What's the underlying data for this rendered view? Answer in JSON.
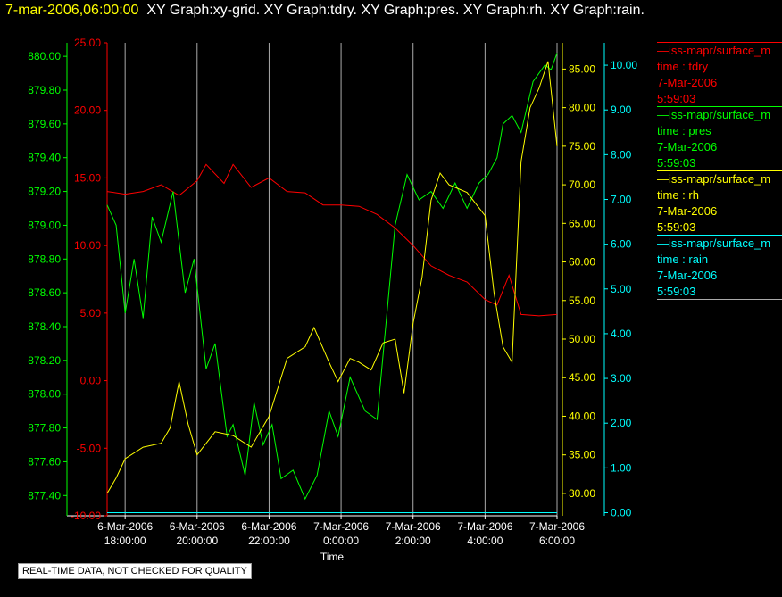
{
  "header": {
    "time": "7-mar-2006,06:00:00",
    "graphs": "XY Graph:xy-grid.  XY Graph:tdry.  XY Graph:pres.  XY Graph:rh.  XY Graph:rain."
  },
  "note": "REAL-TIME DATA, NOT CHECKED FOR QUALITY",
  "colors": {
    "tdry": "#ff0000",
    "pres": "#00ff00",
    "rh": "#ffff00",
    "rain": "#00ffff",
    "grid": "#aaaaaa",
    "text": "#ffffff"
  },
  "legend": [
    {
      "source": "—iss-mapr/surface_m",
      "label": "time : tdry",
      "date": "7-Mar-2006",
      "time": "5:59:03",
      "color": "#ff0000"
    },
    {
      "source": "—iss-mapr/surface_m",
      "label": "time : pres",
      "date": "7-Mar-2006",
      "time": "5:59:03",
      "color": "#00ff00"
    },
    {
      "source": "—iss-mapr/surface_m",
      "label": "time : rh",
      "date": "7-Mar-2006",
      "time": "5:59:03",
      "color": "#ffff00"
    },
    {
      "source": "—iss-mapr/surface_m",
      "label": "time : rain",
      "date": "7-Mar-2006",
      "time": "5:59:03",
      "color": "#00ffff"
    }
  ],
  "chart_data": {
    "type": "line",
    "xlabel": "Time",
    "x_range": [
      "2006-03-06 17:30",
      "2006-03-07 06:00"
    ],
    "x_ticks": [
      {
        "t": "2006-03-06 18:00",
        "date": "6-Mar-2006",
        "time": "18:00:00"
      },
      {
        "t": "2006-03-06 20:00",
        "date": "6-Mar-2006",
        "time": "20:00:00"
      },
      {
        "t": "2006-03-06 22:00",
        "date": "6-Mar-2006",
        "time": "22:00:00"
      },
      {
        "t": "2006-03-07 00:00",
        "date": "7-Mar-2006",
        "time": "0:00:00"
      },
      {
        "t": "2006-03-07 02:00",
        "date": "7-Mar-2006",
        "time": "2:00:00"
      },
      {
        "t": "2006-03-07 04:00",
        "date": "7-Mar-2006",
        "time": "4:00:00"
      },
      {
        "t": "2006-03-07 06:00",
        "date": "7-Mar-2006",
        "time": "6:00:00"
      }
    ],
    "grid": true,
    "axes": {
      "tdry": {
        "ylim": [
          -10,
          25
        ],
        "ticks": [
          "-10.00",
          "-5.00",
          "0.00",
          "5.00",
          "10.00",
          "15.00",
          "20.00",
          "25.00"
        ]
      },
      "pres": {
        "ylim": [
          877.28,
          880.08
        ],
        "ticks": [
          "877.40",
          "877.60",
          "877.80",
          "878.00",
          "878.20",
          "878.40",
          "878.60",
          "878.80",
          "879.00",
          "879.20",
          "879.40",
          "879.60",
          "879.80",
          "880.00"
        ]
      },
      "rh": {
        "ylim": [
          27.1,
          88.4
        ],
        "ticks": [
          "30.00",
          "35.00",
          "40.00",
          "45.00",
          "50.00",
          "55.00",
          "60.00",
          "65.00",
          "70.00",
          "75.00",
          "80.00",
          "85.00"
        ]
      },
      "rain": {
        "ylim": [
          -0.07,
          10.5
        ],
        "ticks": [
          "0.00",
          "1.00",
          "2.00",
          "3.00",
          "4.00",
          "5.00",
          "6.00",
          "7.00",
          "8.00",
          "9.00",
          "10.00"
        ]
      }
    },
    "series": [
      {
        "key": "tdry",
        "x": [
          "2006-03-06 17:30",
          "2006-03-06 18:00",
          "2006-03-06 18:30",
          "2006-03-06 19:00",
          "2006-03-06 19:30",
          "2006-03-06 20:00",
          "2006-03-06 20:15",
          "2006-03-06 20:45",
          "2006-03-06 21:00",
          "2006-03-06 21:30",
          "2006-03-06 22:00",
          "2006-03-06 22:30",
          "2006-03-06 23:00",
          "2006-03-06 23:30",
          "2006-03-07 00:00",
          "2006-03-07 00:30",
          "2006-03-07 01:00",
          "2006-03-07 01:30",
          "2006-03-07 02:00",
          "2006-03-07 02:30",
          "2006-03-07 03:00",
          "2006-03-07 03:30",
          "2006-03-07 04:00",
          "2006-03-07 04:20",
          "2006-03-07 04:40",
          "2006-03-07 05:00",
          "2006-03-07 05:30",
          "2006-03-07 06:00"
        ],
        "values": [
          14.0,
          13.8,
          14.0,
          14.5,
          13.7,
          14.8,
          16.0,
          14.6,
          16.0,
          14.3,
          15.0,
          14.0,
          13.9,
          13.0,
          13.0,
          12.9,
          12.3,
          11.3,
          10.0,
          8.5,
          7.8,
          7.3,
          6.0,
          5.6,
          7.8,
          4.9,
          4.8,
          4.9
        ]
      },
      {
        "key": "pres",
        "x": [
          "2006-03-06 17:30",
          "2006-03-06 17:45",
          "2006-03-06 18:00",
          "2006-03-06 18:15",
          "2006-03-06 18:30",
          "2006-03-06 18:45",
          "2006-03-06 19:00",
          "2006-03-06 19:20",
          "2006-03-06 19:40",
          "2006-03-06 19:55",
          "2006-03-06 20:15",
          "2006-03-06 20:30",
          "2006-03-06 20:50",
          "2006-03-06 21:00",
          "2006-03-06 21:20",
          "2006-03-06 21:35",
          "2006-03-06 21:50",
          "2006-03-06 22:05",
          "2006-03-06 22:20",
          "2006-03-06 22:40",
          "2006-03-06 23:00",
          "2006-03-06 23:20",
          "2006-03-06 23:40",
          "2006-03-06 23:55",
          "2006-03-07 00:15",
          "2006-03-07 00:40",
          "2006-03-07 01:00",
          "2006-03-07 01:30",
          "2006-03-07 01:50",
          "2006-03-07 02:10",
          "2006-03-07 02:30",
          "2006-03-07 02:50",
          "2006-03-07 03:10",
          "2006-03-07 03:30",
          "2006-03-07 03:50",
          "2006-03-07 04:05",
          "2006-03-07 04:20",
          "2006-03-07 04:30",
          "2006-03-07 04:45",
          "2006-03-07 05:00",
          "2006-03-07 05:20",
          "2006-03-07 05:40",
          "2006-03-07 05:50",
          "2006-03-07 06:00"
        ],
        "values": [
          879.12,
          879.0,
          878.48,
          878.8,
          878.45,
          879.05,
          878.9,
          879.2,
          878.6,
          878.8,
          878.15,
          878.3,
          877.75,
          877.82,
          877.52,
          877.95,
          877.7,
          877.82,
          877.5,
          877.55,
          877.38,
          877.52,
          877.9,
          877.75,
          878.1,
          877.9,
          877.85,
          879.0,
          879.3,
          879.15,
          879.2,
          879.1,
          879.25,
          879.1,
          879.25,
          879.3,
          879.4,
          879.6,
          879.65,
          879.55,
          879.85,
          879.95,
          879.92,
          880.02
        ]
      },
      {
        "key": "rh",
        "x": [
          "2006-03-06 17:30",
          "2006-03-06 17:45",
          "2006-03-06 18:00",
          "2006-03-06 18:30",
          "2006-03-06 19:00",
          "2006-03-06 19:15",
          "2006-03-06 19:30",
          "2006-03-06 19:45",
          "2006-03-06 20:00",
          "2006-03-06 20:30",
          "2006-03-06 21:00",
          "2006-03-06 21:30",
          "2006-03-06 22:00",
          "2006-03-06 22:30",
          "2006-03-06 23:00",
          "2006-03-06 23:15",
          "2006-03-06 23:40",
          "2006-03-06 23:55",
          "2006-03-07 00:15",
          "2006-03-07 00:30",
          "2006-03-07 00:50",
          "2006-03-07 01:10",
          "2006-03-07 01:30",
          "2006-03-07 01:45",
          "2006-03-07 02:00",
          "2006-03-07 02:15",
          "2006-03-07 02:30",
          "2006-03-07 02:45",
          "2006-03-07 03:00",
          "2006-03-07 03:30",
          "2006-03-07 04:00",
          "2006-03-07 04:15",
          "2006-03-07 04:30",
          "2006-03-07 04:45",
          "2006-03-07 05:00",
          "2006-03-07 05:15",
          "2006-03-07 05:30",
          "2006-03-07 05:45",
          "2006-03-07 06:00"
        ],
        "values": [
          30.0,
          32.0,
          34.5,
          36.0,
          36.5,
          38.5,
          44.5,
          39.0,
          35.0,
          38.0,
          37.5,
          36.0,
          40.0,
          47.5,
          49.0,
          51.5,
          47.0,
          44.5,
          47.5,
          47.0,
          46.0,
          49.5,
          50.0,
          43.0,
          52.0,
          58.0,
          68.0,
          71.5,
          70.0,
          69.0,
          66.0,
          56.0,
          49.0,
          47.0,
          73.0,
          80.0,
          82.5,
          86.0,
          75.0
        ]
      },
      {
        "key": "rain",
        "x": [
          "2006-03-06 17:30",
          "2006-03-07 06:00"
        ],
        "values": [
          0.0,
          0.0
        ]
      }
    ]
  }
}
